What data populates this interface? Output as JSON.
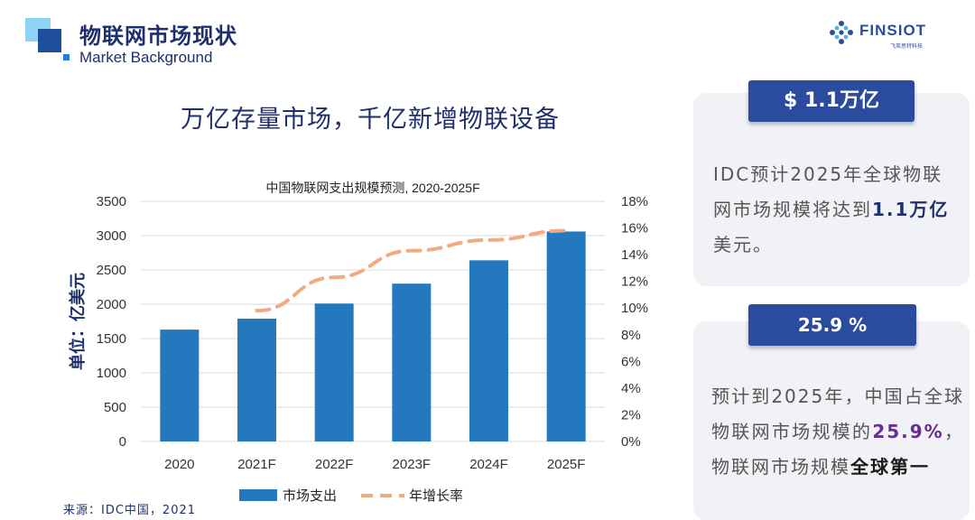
{
  "header": {
    "title": "物联网市场现状",
    "subtitle": "Market Background",
    "brand_name": "FINSIOT",
    "brand_tagline": "飞英思特科技"
  },
  "headline": "万亿存量市场，千亿新增物联设备",
  "source": "来源：IDC中国，2021",
  "colors": {
    "bar": "#2478bd",
    "line": "#f2aa80",
    "accent": "#2b4c9e",
    "title": "#1f2f6b"
  },
  "chart_data": {
    "type": "bar",
    "title": "中国物联网支出规模预测, 2020-2025F",
    "categories": [
      "2020",
      "2021F",
      "2022F",
      "2023F",
      "2024F",
      "2025F"
    ],
    "series": [
      {
        "name": "市场支出",
        "type": "bar",
        "axis": "left",
        "values": [
          1630,
          1790,
          2010,
          2300,
          2640,
          3060
        ]
      },
      {
        "name": "年增长率",
        "type": "line",
        "style": "dashed",
        "axis": "right",
        "values": [
          null,
          9.8,
          12.3,
          14.3,
          15.1,
          15.8
        ]
      }
    ],
    "ylabel": "单位：亿美元",
    "ylim": [
      0,
      3500
    ],
    "yticks": [
      "0",
      "500",
      "1000",
      "1500",
      "2000",
      "2500",
      "3000",
      "3500"
    ],
    "y2lim": [
      0,
      18
    ],
    "y2ticks": [
      "0%",
      "2%",
      "4%",
      "6%",
      "8%",
      "10%",
      "12%",
      "14%",
      "16%",
      "18%"
    ],
    "grid": true,
    "legend": "bottom"
  },
  "cards": [
    {
      "badge": "$ 1.1万亿",
      "parts": [
        {
          "text": "IDC预计2025年全球物联网市场规模将达到",
          "style": "normal"
        },
        {
          "text": "1.1万亿",
          "style": "blue"
        },
        {
          "text": "美元。",
          "style": "normal"
        }
      ]
    },
    {
      "badge": "25.9 %",
      "parts": [
        {
          "text": "预计到2025年，中国占全球物联网市场规模的",
          "style": "normal"
        },
        {
          "text": "25.9%",
          "style": "purple"
        },
        {
          "text": "，物联网市场规模",
          "style": "normal"
        },
        {
          "text": "全球第一",
          "style": "dark"
        }
      ]
    }
  ]
}
